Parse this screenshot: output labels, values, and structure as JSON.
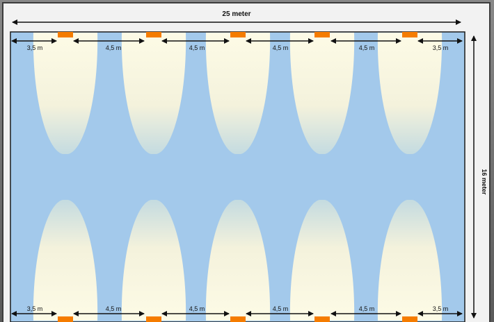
{
  "colors": {
    "floor": "#a3c9eb",
    "floor_border": "#1a1a1a",
    "lamp": "#f57c00",
    "light_top": "#fdfbe6",
    "light_bottom": "#c9dfe3",
    "arrow": "#111111"
  },
  "dimensions": {
    "width_label": "25 meter",
    "height_label": "16 meter",
    "top_spacings": [
      "3,5 m",
      "4,5 m",
      "4,5 m",
      "4,5 m",
      "4,5 m",
      "3,5 m"
    ],
    "bottom_spacings": [
      "3,5 m",
      "4,5 m",
      "4,5 m",
      "4,5 m",
      "4,5 m",
      "3,5 m"
    ]
  },
  "layout_counts": {
    "lamps_per_row": 5,
    "rows": 2
  }
}
